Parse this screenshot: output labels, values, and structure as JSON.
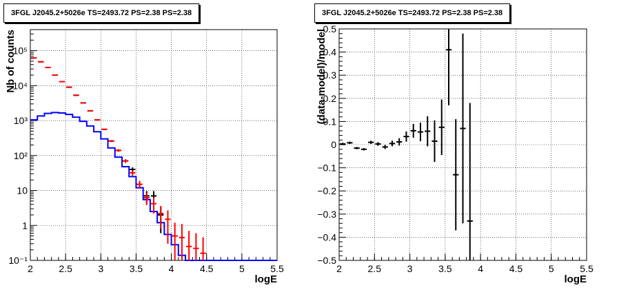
{
  "chart_data": [
    {
      "type": "histogram",
      "title": "3FGL J2045.2+5026e TS=2493.72 PS=2.38 PS=2.38",
      "xlabel": "logE",
      "ylabel": "Nb of counts",
      "xlim": [
        2,
        5.5
      ],
      "ylim": [
        0.1,
        400000
      ],
      "yscale": "log",
      "grid": true,
      "x_ticks": [
        "2",
        "2.5",
        "3",
        "3.5",
        "4",
        "4.5",
        "5",
        "5.5"
      ],
      "y_ticks": [
        "10⁻¹",
        "1",
        "10",
        "10²",
        "10³",
        "10⁴",
        "10⁵"
      ],
      "bin_edges": [
        2.0,
        2.1,
        2.2,
        2.3,
        2.4,
        2.5,
        2.6,
        2.7,
        2.8,
        2.9,
        3.0,
        3.1,
        3.2,
        3.3,
        3.4,
        3.5,
        3.6,
        3.7,
        3.8,
        3.9,
        4.0,
        4.1,
        4.2,
        4.3,
        4.4,
        4.5,
        4.6,
        4.7,
        4.8,
        4.9,
        5.0,
        5.1,
        5.2,
        5.3,
        5.4,
        5.5
      ],
      "series": [
        {
          "color": "#0000ff",
          "style": "step",
          "values": [
            1050,
            1350,
            1600,
            1700,
            1650,
            1500,
            1250,
            950,
            700,
            480,
            300,
            165,
            90,
            48,
            25,
            12,
            5.5,
            2.5,
            1.2,
            0.55,
            0.28,
            0.14,
            0.1,
            0.1,
            0.1,
            0.1,
            0.1,
            0.1,
            0.1,
            0.1,
            0.1,
            0.1,
            0.1,
            0.1,
            0.1
          ]
        },
        {
          "color": "#ff0000",
          "style": "errorbars",
          "values": [
            62000,
            48000,
            33000,
            20000,
            13000,
            9000,
            5300,
            3200,
            1900,
            1050,
            560,
            260,
            140,
            70,
            32,
            15,
            6.2,
            4.2,
            2.2,
            1.5,
            0.5,
            0.45,
            0.25,
            0.22,
            0.16
          ],
          "yerr_low": [
            250,
            220,
            180,
            140,
            115,
            95,
            73,
            57,
            44,
            32,
            24,
            16,
            12,
            8,
            5.5,
            3.8,
            2.4,
            2.0,
            1.4,
            1.2,
            0.4,
            0.35,
            0.15,
            0.12,
            0.06
          ],
          "yerr_high": [
            250,
            220,
            180,
            140,
            115,
            95,
            73,
            57,
            44,
            32,
            24,
            16,
            12,
            8,
            5.5,
            3.8,
            2.4,
            2.0,
            1.4,
            1.2,
            0.7,
            0.65,
            0.45,
            0.38,
            0.3
          ]
        },
        {
          "color": "#000000",
          "style": "errorbars",
          "values": [
            62000,
            48000,
            33000,
            20000,
            13000,
            9000,
            5300,
            3200,
            1900,
            1050,
            560,
            260,
            140,
            70,
            40,
            15,
            7,
            7,
            2
          ],
          "yerr_low": [
            250,
            220,
            180,
            140,
            115,
            95,
            73,
            57,
            44,
            32,
            24,
            16,
            12,
            8,
            6,
            3.8,
            2.6,
            2.6,
            1.4
          ],
          "yerr_high": [
            250,
            220,
            180,
            140,
            115,
            95,
            73,
            57,
            44,
            32,
            24,
            16,
            12,
            8,
            6,
            3.8,
            2.6,
            2.6,
            1.4
          ]
        }
      ]
    },
    {
      "type": "errorbar",
      "title": "3FGL J2045.2+5026e TS=2493.72 PS=2.38 PS=2.38",
      "xlabel": "logE",
      "ylabel": "(data-model)/model",
      "xlim": [
        2,
        5.5
      ],
      "ylim": [
        -0.5,
        0.5
      ],
      "grid": true,
      "x_ticks": [
        "2",
        "2.5",
        "3",
        "3.5",
        "4",
        "4.5",
        "5",
        "5.5"
      ],
      "y_ticks": [
        "−0.5",
        "−0.4",
        "−0.3",
        "−0.2",
        "−0.1",
        "0",
        "0.1",
        "0.2",
        "0.3",
        "0.4",
        "0.5"
      ],
      "series": [
        {
          "color": "#000000",
          "x": [
            2.05,
            2.15,
            2.25,
            2.35,
            2.45,
            2.55,
            2.65,
            2.75,
            2.85,
            2.95,
            3.05,
            3.15,
            3.25,
            3.35,
            3.45,
            3.55,
            3.65,
            3.75,
            3.85
          ],
          "y": [
            0.003,
            0.008,
            -0.015,
            -0.02,
            0.01,
            0.003,
            -0.01,
            0.005,
            0.012,
            0.035,
            0.06,
            0.055,
            0.058,
            0.015,
            0.075,
            0.41,
            -0.13,
            0.07,
            -0.33
          ],
          "yerr": [
            0.005,
            0.005,
            0.005,
            0.005,
            0.007,
            0.008,
            0.009,
            0.012,
            0.016,
            0.022,
            0.03,
            0.04,
            0.065,
            0.09,
            0.12,
            0.24,
            0.24,
            0.41,
            0.51
          ]
        }
      ]
    }
  ]
}
